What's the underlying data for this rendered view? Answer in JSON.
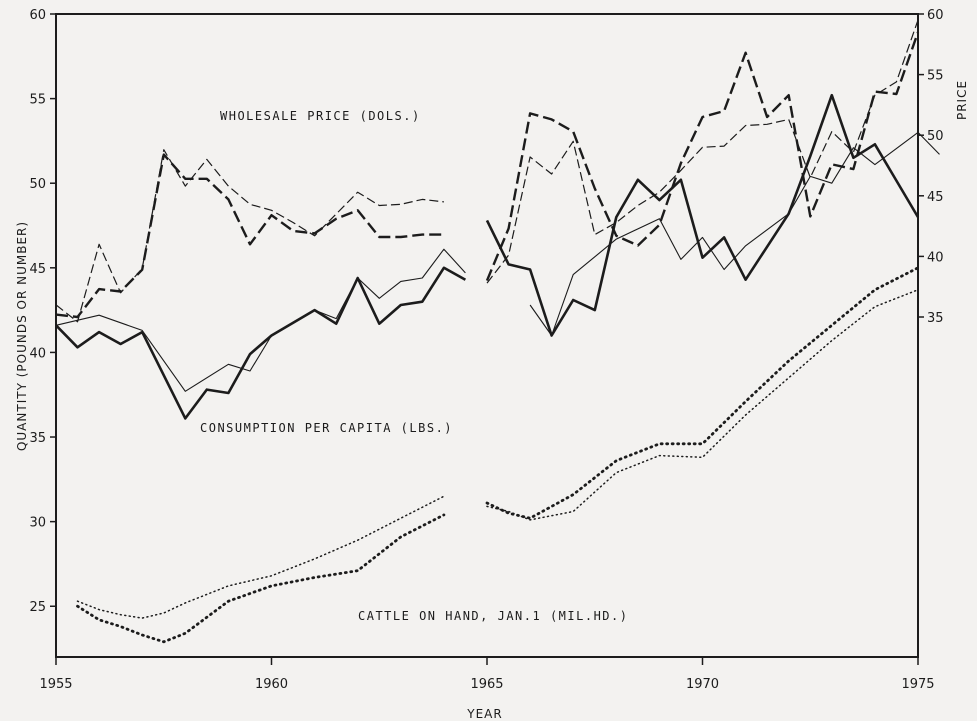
{
  "chart_data": {
    "type": "line",
    "xlabel": "YEAR",
    "ylabel_left": "QUANTITY (POUNDS OR NUMBER)",
    "ylabel_right": "PRICE",
    "xlim": [
      1955,
      1975
    ],
    "ylim_left": [
      22,
      60
    ],
    "ylim_right": [
      34,
      60
    ],
    "x_ticks": [
      1955,
      1960,
      1965,
      1970,
      1975
    ],
    "y_ticks_left": [
      25,
      30,
      35,
      40,
      45,
      50,
      55,
      60
    ],
    "y_ticks_right": [
      35,
      40,
      45,
      50,
      55,
      60
    ],
    "annotations": {
      "price": "WHOLESALE PRICE (DOLS.)",
      "consumption": "CONSUMPTION PER CAPITA (LBS.)",
      "cattle": "CATTLE ON HAND, JAN.1 (MIL.HD.)"
    },
    "series": [
      {
        "group": "price",
        "axis": "right",
        "style": "dash-thin",
        "segments": [
          [
            [
              1955,
              36
            ],
            [
              1955.5,
              34.6
            ],
            [
              1956,
              41
            ],
            [
              1956.5,
              37
            ],
            [
              1957,
              39
            ],
            [
              1957.5,
              48.8
            ],
            [
              1958,
              45.8
            ],
            [
              1958.5,
              48
            ],
            [
              1959,
              45.8
            ],
            [
              1959.5,
              44.3
            ],
            [
              1960,
              43.8
            ],
            [
              1960.5,
              42.8
            ],
            [
              1961,
              41.7
            ],
            [
              1961.5,
              43.5
            ],
            [
              1962,
              45.3
            ],
            [
              1962.5,
              44.2
            ],
            [
              1963,
              44.3
            ],
            [
              1963.5,
              44.7
            ],
            [
              1964,
              44.5
            ]
          ],
          [
            [
              1965,
              37.8
            ],
            [
              1965.5,
              40.1
            ],
            [
              1966,
              48.2
            ],
            [
              1966.5,
              46.8
            ],
            [
              1967,
              49.5
            ],
            [
              1967.5,
              41.8
            ],
            [
              1968,
              42.8
            ],
            [
              1968.5,
              44.2
            ],
            [
              1969,
              45.3
            ],
            [
              1969.5,
              47.1
            ],
            [
              1970,
              49
            ],
            [
              1970.5,
              49.1
            ],
            [
              1971,
              50.8
            ],
            [
              1971.5,
              50.9
            ],
            [
              1972,
              51.3
            ],
            [
              1972.5,
              46.5
            ],
            [
              1973,
              50.3
            ],
            [
              1973.5,
              48.6
            ],
            [
              1974,
              53.3
            ],
            [
              1974.5,
              54.4
            ],
            [
              1975,
              59.5
            ]
          ]
        ]
      },
      {
        "group": "price",
        "axis": "right",
        "style": "dash-thick",
        "segments": [
          [
            [
              1955,
              35.2
            ],
            [
              1955.5,
              35
            ],
            [
              1956,
              37.3
            ],
            [
              1956.5,
              37.1
            ],
            [
              1957,
              38.9
            ],
            [
              1957.5,
              48.4
            ],
            [
              1958,
              46.4
            ],
            [
              1958.5,
              46.4
            ],
            [
              1959,
              44.7
            ],
            [
              1959.5,
              41
            ],
            [
              1960,
              43.4
            ],
            [
              1960.5,
              42.1
            ],
            [
              1961,
              41.9
            ],
            [
              1961.5,
              43.1
            ],
            [
              1962,
              43.8
            ],
            [
              1962.5,
              41.6
            ],
            [
              1963,
              41.6
            ],
            [
              1963.5,
              41.8
            ],
            [
              1964,
              41.8
            ]
          ],
          [
            [
              1965,
              38
            ],
            [
              1965.5,
              42.3
            ],
            [
              1966,
              51.8
            ],
            [
              1966.5,
              51.3
            ],
            [
              1967,
              50.3
            ],
            [
              1967.5,
              45.6
            ],
            [
              1968,
              41.7
            ],
            [
              1968.5,
              40.9
            ],
            [
              1969,
              42.6
            ],
            [
              1969.5,
              47.7
            ],
            [
              1970,
              51.5
            ],
            [
              1970.5,
              52
            ],
            [
              1971,
              56.8
            ],
            [
              1971.5,
              51.5
            ],
            [
              1972,
              53.3
            ],
            [
              1972.5,
              43.3
            ],
            [
              1973,
              47.6
            ],
            [
              1973.5,
              47.2
            ],
            [
              1974,
              53.6
            ],
            [
              1974.5,
              53.4
            ],
            [
              1975,
              58.5
            ]
          ]
        ]
      },
      {
        "group": "consumption",
        "axis": "left",
        "style": "solid-thin",
        "segments": [
          [
            [
              1955,
              41.6
            ],
            [
              1956,
              42.2
            ],
            [
              1957,
              41.3
            ],
            [
              1958,
              37.7
            ],
            [
              1959,
              39.3
            ],
            [
              1959.5,
              38.9
            ],
            [
              1960,
              41
            ],
            [
              1961,
              42.5
            ],
            [
              1961.5,
              42
            ],
            [
              1962,
              44.4
            ],
            [
              1962.5,
              43.2
            ],
            [
              1963,
              44.2
            ],
            [
              1963.5,
              44.4
            ],
            [
              1964,
              46.1
            ],
            [
              1964.5,
              44.7
            ]
          ],
          [
            [
              1966,
              42.8
            ],
            [
              1966.5,
              41
            ],
            [
              1967,
              44.6
            ],
            [
              1968,
              46.7
            ],
            [
              1969,
              47.9
            ],
            [
              1969.5,
              45.5
            ],
            [
              1970,
              46.8
            ],
            [
              1970.5,
              44.9
            ],
            [
              1971,
              46.3
            ],
            [
              1972,
              48.2
            ],
            [
              1972.5,
              50.4
            ],
            [
              1973,
              50
            ],
            [
              1973.5,
              52.1
            ],
            [
              1974,
              51.1
            ],
            [
              1975,
              53
            ],
            [
              1975.5,
              51.7
            ]
          ]
        ]
      },
      {
        "group": "consumption",
        "axis": "left",
        "style": "solid-thick",
        "segments": [
          [
            [
              1955,
              41.6
            ],
            [
              1955.5,
              40.3
            ],
            [
              1956,
              41.2
            ],
            [
              1956.5,
              40.5
            ],
            [
              1957,
              41.2
            ],
            [
              1958,
              36.1
            ],
            [
              1958.5,
              37.8
            ],
            [
              1959,
              37.6
            ],
            [
              1959.5,
              39.9
            ],
            [
              1960,
              41
            ],
            [
              1961,
              42.5
            ],
            [
              1961.5,
              41.7
            ],
            [
              1962,
              44.4
            ],
            [
              1962.5,
              41.7
            ],
            [
              1963,
              42.8
            ],
            [
              1963.5,
              43
            ],
            [
              1964,
              45
            ],
            [
              1964.5,
              44.3
            ]
          ],
          [
            [
              1965,
              47.8
            ],
            [
              1965.5,
              45.2
            ],
            [
              1966,
              44.9
            ],
            [
              1966.5,
              41
            ],
            [
              1967,
              43.1
            ],
            [
              1967.5,
              42.5
            ],
            [
              1968,
              48
            ],
            [
              1968.5,
              50.2
            ],
            [
              1969,
              49
            ],
            [
              1969.5,
              50.2
            ],
            [
              1970,
              45.6
            ],
            [
              1970.5,
              46.8
            ],
            [
              1971,
              44.3
            ],
            [
              1972,
              48.2
            ],
            [
              1972.5,
              51.6
            ],
            [
              1973,
              55.2
            ],
            [
              1973.5,
              51.5
            ],
            [
              1974,
              52.3
            ],
            [
              1975,
              48
            ]
          ]
        ]
      },
      {
        "group": "cattle",
        "axis": "left",
        "style": "dot-thin",
        "segments": [
          [
            [
              1955.5,
              25.3
            ],
            [
              1956,
              24.8
            ],
            [
              1956.5,
              24.5
            ],
            [
              1957,
              24.3
            ],
            [
              1957.5,
              24.6
            ],
            [
              1958,
              25.2
            ],
            [
              1959,
              26.2
            ],
            [
              1960,
              26.8
            ],
            [
              1961,
              27.8
            ],
            [
              1962,
              28.9
            ],
            [
              1963,
              30.2
            ],
            [
              1964,
              31.5
            ]
          ],
          [
            [
              1965,
              30.9
            ],
            [
              1965.5,
              30.6
            ],
            [
              1966,
              30.1
            ],
            [
              1967,
              30.6
            ],
            [
              1968,
              32.9
            ],
            [
              1969,
              33.9
            ],
            [
              1970,
              33.8
            ],
            [
              1971,
              36.3
            ],
            [
              1972,
              38.5
            ],
            [
              1973,
              40.7
            ],
            [
              1974,
              42.7
            ],
            [
              1975,
              43.7
            ]
          ]
        ]
      },
      {
        "group": "cattle",
        "axis": "left",
        "style": "dot-thick",
        "segments": [
          [
            [
              1955.5,
              25
            ],
            [
              1956,
              24.2
            ],
            [
              1956.5,
              23.8
            ],
            [
              1957,
              23.3
            ],
            [
              1957.5,
              22.9
            ],
            [
              1958,
              23.4
            ],
            [
              1959,
              25.3
            ],
            [
              1960,
              26.2
            ],
            [
              1961,
              26.7
            ],
            [
              1962,
              27.1
            ],
            [
              1963,
              29.1
            ],
            [
              1964,
              30.4
            ]
          ],
          [
            [
              1965,
              31.1
            ],
            [
              1965.5,
              30.5
            ],
            [
              1966,
              30.2
            ],
            [
              1967,
              31.6
            ],
            [
              1968,
              33.6
            ],
            [
              1969,
              34.6
            ],
            [
              1970,
              34.6
            ],
            [
              1971,
              37.1
            ],
            [
              1972,
              39.5
            ],
            [
              1973,
              41.6
            ],
            [
              1974,
              43.7
            ],
            [
              1975,
              45
            ]
          ]
        ]
      }
    ]
  }
}
